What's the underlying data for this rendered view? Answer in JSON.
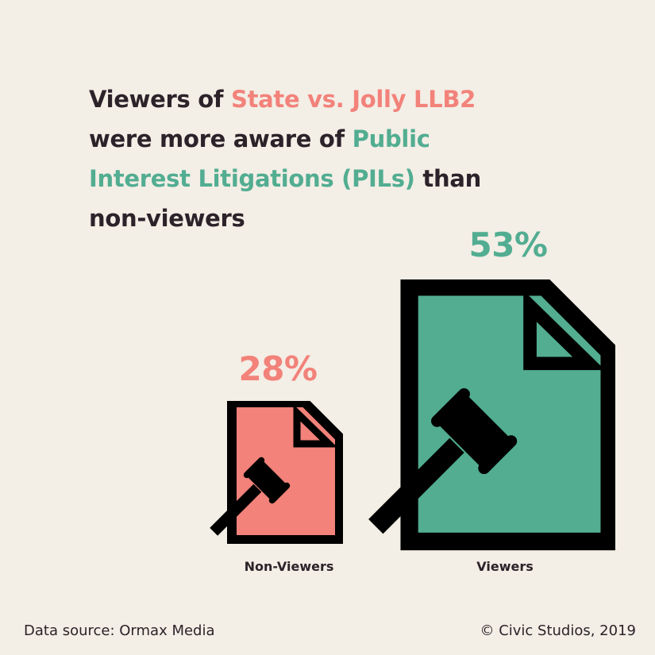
{
  "title": {
    "part1": "Viewers of ",
    "highlight1": "State vs. Jolly LLB2",
    "part2": " were more aware of ",
    "highlight2": "Public Interest Litigations (PILs)",
    "part3": " than non-viewers"
  },
  "colors": {
    "background": "#f3eee6",
    "text": "#2b2329",
    "non_viewers": "#f2827a",
    "viewers": "#52ad91",
    "icon_outline": "#000000"
  },
  "chart_data": {
    "type": "bar",
    "categories": [
      "Non-Viewers",
      "Viewers"
    ],
    "values": [
      28,
      53
    ],
    "value_labels": [
      "28%",
      "53%"
    ],
    "unit": "%",
    "mark": "gavel-document-icon",
    "grid": false,
    "legend": "none"
  },
  "footer": {
    "source": "Data source: Ormax Media",
    "credit": "© Civic Studios, 2019"
  }
}
